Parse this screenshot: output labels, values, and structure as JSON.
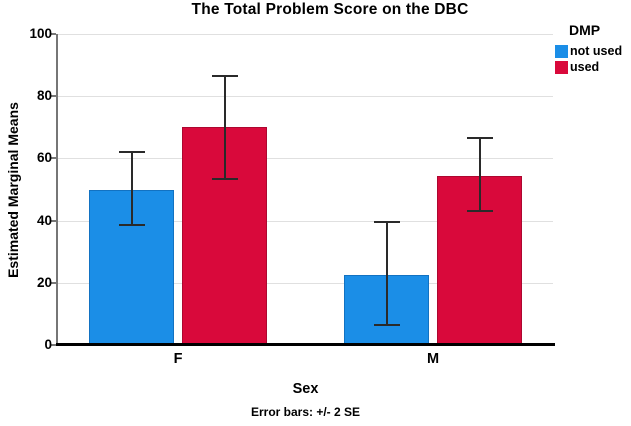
{
  "chart_data": {
    "type": "bar",
    "title": "The Total Problem Score on the DBC",
    "xlabel": "Sex",
    "ylabel": "Estimated Marginal Means",
    "footnote": "Error bars: +/- 2 SE",
    "legend_title": "DMP",
    "legend_position": "right",
    "categories": [
      "F",
      "M"
    ],
    "series": [
      {
        "name": "not used",
        "color": "#1B8EE7",
        "edge": "#1272C2",
        "values": [
          50,
          22.5
        ],
        "error_low": [
          38.5,
          6.5
        ],
        "error_high": [
          62,
          39.5
        ]
      },
      {
        "name": "used",
        "color": "#D9093B",
        "edge": "#AD0730",
        "values": [
          70,
          54.5
        ],
        "error_low": [
          53.5,
          43
        ],
        "error_high": [
          86.5,
          66.5
        ]
      }
    ],
    "yticks": [
      0,
      20,
      40,
      60,
      80,
      100
    ],
    "ylim": [
      0,
      100
    ],
    "grid": true,
    "colors": {
      "grid": "#E0E0E0",
      "axis": "#767676",
      "baseline": "#000000",
      "error_bar": "#2A2A2A",
      "text": "#000000",
      "background": "#FFFFFF"
    }
  }
}
